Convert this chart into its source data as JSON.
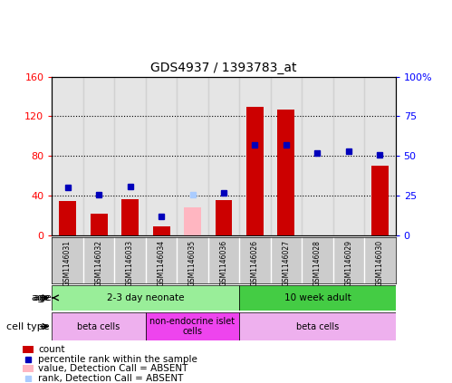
{
  "title": "GDS4937 / 1393783_at",
  "samples": [
    "GSM1146031",
    "GSM1146032",
    "GSM1146033",
    "GSM1146034",
    "GSM1146035",
    "GSM1146036",
    "GSM1146026",
    "GSM1146027",
    "GSM1146028",
    "GSM1146029",
    "GSM1146030"
  ],
  "count_values": [
    35,
    22,
    37,
    9,
    null,
    36,
    130,
    127,
    null,
    null,
    70
  ],
  "count_absent": [
    null,
    null,
    null,
    null,
    28,
    null,
    null,
    null,
    null,
    null,
    null
  ],
  "rank_values": [
    30,
    26,
    31,
    12,
    null,
    27,
    57,
    57,
    52,
    53,
    51
  ],
  "rank_absent": [
    null,
    null,
    null,
    null,
    26,
    null,
    null,
    null,
    null,
    null,
    null
  ],
  "ylim_left": [
    0,
    160
  ],
  "ylim_right": [
    0,
    100
  ],
  "yticks_left": [
    0,
    40,
    80,
    120,
    160
  ],
  "yticks_right": [
    0,
    25,
    50,
    75,
    100
  ],
  "ytick_labels_left": [
    "0",
    "40",
    "80",
    "120",
    "160"
  ],
  "ytick_labels_right": [
    "0",
    "25",
    "50",
    "75",
    "100%"
  ],
  "age_groups": [
    {
      "label": "2-3 day neonate",
      "start": 0,
      "end": 6,
      "color": "#99EE99"
    },
    {
      "label": "10 week adult",
      "start": 6,
      "end": 11,
      "color": "#44CC44"
    }
  ],
  "cell_type_groups": [
    {
      "label": "beta cells",
      "start": 0,
      "end": 3,
      "color": "#EEB0EE"
    },
    {
      "label": "non-endocrine islet\ncells",
      "start": 3,
      "end": 6,
      "color": "#EE44EE"
    },
    {
      "label": "beta cells",
      "start": 6,
      "end": 11,
      "color": "#EEB0EE"
    }
  ],
  "bar_color": "#CC0000",
  "bar_absent_color": "#FFB6C1",
  "dot_color": "#0000BB",
  "dot_absent_color": "#AACCFF",
  "bar_width": 0.55,
  "col_bg": "#CCCCCC"
}
